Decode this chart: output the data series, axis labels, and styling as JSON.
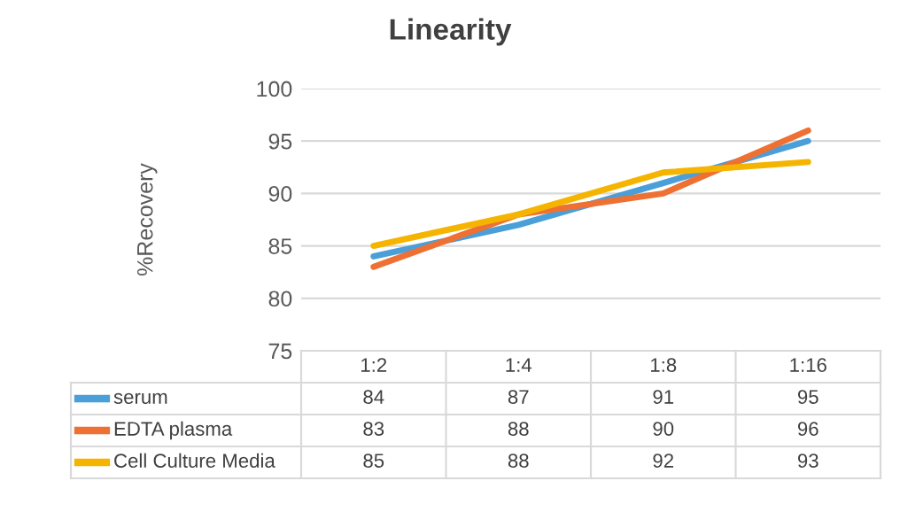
{
  "chart_data": {
    "type": "line",
    "title": "Linearity",
    "ylabel": "%Recovery",
    "categories": [
      "1:2",
      "1:4",
      "1:8",
      "1:16"
    ],
    "series": [
      {
        "name": "serum",
        "color": "#4a9fd8",
        "values": [
          84,
          87,
          91,
          95
        ]
      },
      {
        "name": "EDTA plasma",
        "color": "#ee7033",
        "values": [
          83,
          88,
          90,
          96
        ]
      },
      {
        "name": "Cell Culture Media",
        "color": "#f5b400",
        "values": [
          85,
          88,
          92,
          93
        ]
      }
    ],
    "ylim": [
      75,
      100
    ],
    "yticks": [
      75,
      80,
      85,
      90,
      95,
      100
    ],
    "grid": "y",
    "data_labels": true,
    "legend": "bottom",
    "line_style": "solid",
    "marker": "none"
  }
}
